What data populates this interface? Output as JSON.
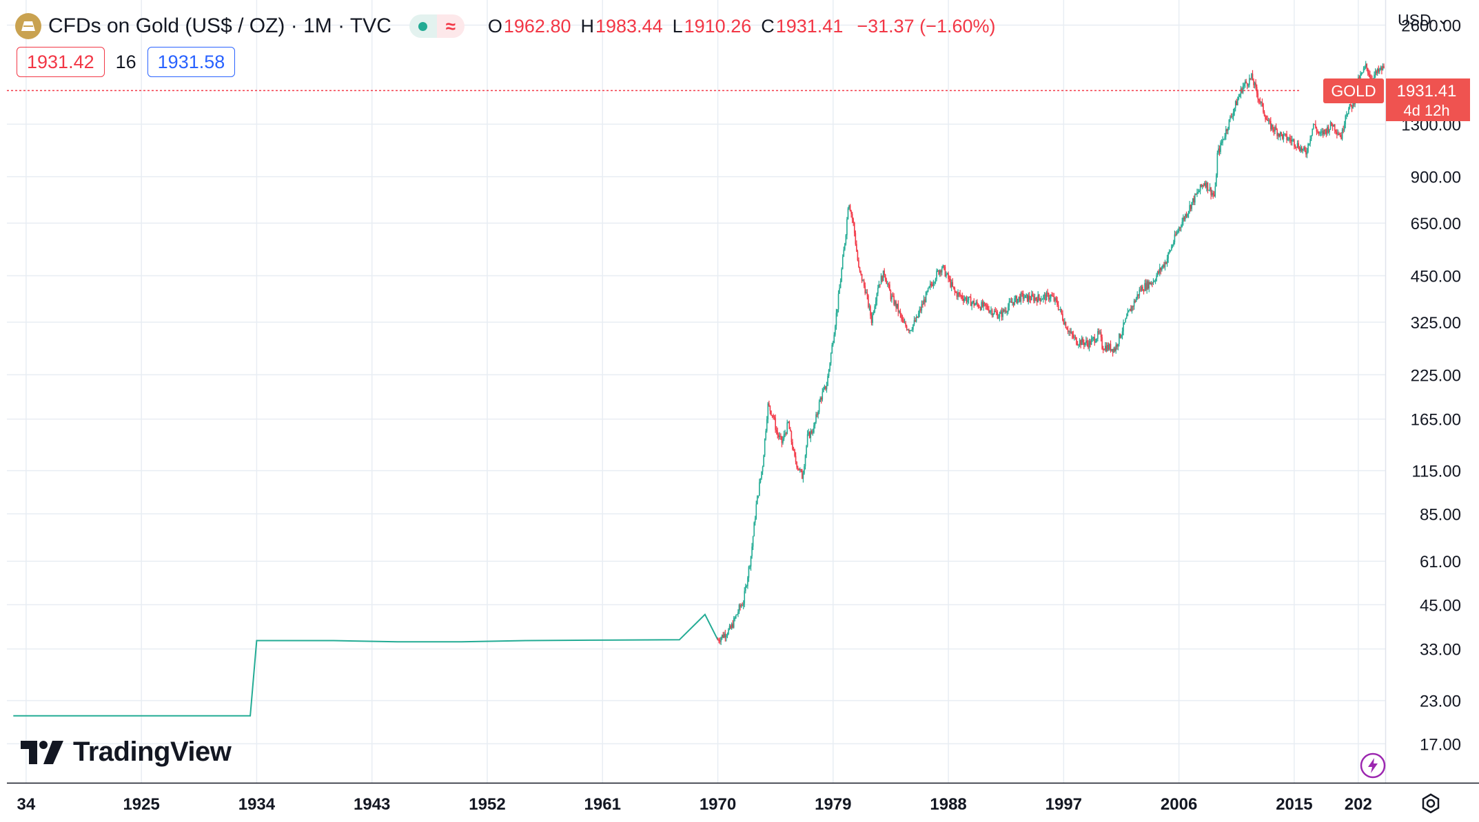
{
  "header": {
    "title": "CFDs on Gold (US$ / OZ) · 1M · TVC",
    "ohlc": [
      {
        "key": "O",
        "value": "1962.80"
      },
      {
        "key": "H",
        "value": "1983.44"
      },
      {
        "key": "L",
        "value": "1910.26"
      },
      {
        "key": "C",
        "value": "1931.41"
      }
    ],
    "change": "−31.37 (−1.60%)",
    "sell_price": "1931.42",
    "spread": "16",
    "buy_price": "1931.58",
    "currency": "USD"
  },
  "price_label": {
    "symbol": "GOLD",
    "price": "1931.41",
    "countdown": "4d 12h"
  },
  "brand": "TradingView",
  "colors": {
    "up": "#22ab94",
    "down": "#f23645",
    "grid": "#e8edf3",
    "buy": "#2962ff"
  },
  "icons": [
    "gold-bar-icon",
    "eye-dot-icon",
    "approx-icon",
    "chevron-down-icon",
    "tradingview-logo-icon",
    "lightning-icon",
    "gear-icon"
  ],
  "chart_data": {
    "type": "candlestick",
    "scale": "log",
    "x_ticks": [
      "34",
      "1925",
      "1934",
      "1943",
      "1952",
      "1961",
      "1970",
      "1979",
      "1988",
      "1997",
      "2006",
      "2015",
      "202"
    ],
    "y_ticks": [
      "2600.00",
      "1300.00",
      "900.00",
      "650.00",
      "450.00",
      "325.00",
      "225.00",
      "165.00",
      "115.00",
      "85.00",
      "61.00",
      "45.00",
      "33.00",
      "23.00",
      "17.00"
    ],
    "ylim": [
      13,
      3100
    ],
    "xlim": [
      1914.5,
      2022.0
    ],
    "last_close": 1931.41,
    "series": [
      {
        "x": [
          1915,
          1925,
          1933.5,
          1934,
          1940,
          1945,
          1950,
          1955,
          1960,
          1967,
          1969,
          1970
        ],
        "y": [
          20.67,
          20.67,
          20.67,
          35,
          35,
          34.7,
          34.7,
          35,
          35.1,
          35.2,
          42,
          35.2
        ]
      },
      {
        "x": [
          1970,
          1971,
          1971.7,
          1972,
          1972.6,
          1973,
          1973.5,
          1973.9,
          1974.3,
          1974.6,
          1975,
          1975.5,
          1976,
          1976.6,
          1977,
          1977.5,
          1978,
          1978.5,
          1979,
          1979.4,
          1979.8,
          1980.05,
          1980.2,
          1980.6,
          1981,
          1981.5,
          1982,
          1982.5,
          1983,
          1983.5,
          1984,
          1984.5,
          1985,
          1985.5,
          1986,
          1986.5,
          1987,
          1987.5,
          1988,
          1988.5,
          1989,
          1990,
          1991,
          1992,
          1993,
          1993.8,
          1994,
          1995,
          1996,
          1996.5,
          1997,
          1997.5,
          1998,
          1999,
          1999.8,
          2000,
          2001,
          2002,
          2003,
          2004,
          2005,
          2006,
          2007,
          2008,
          2008.8,
          2009,
          2010,
          2011,
          2011.7,
          2012,
          2013,
          2013.5,
          2014,
          2015,
          2015.9,
          2016.5,
          2017,
          2018,
          2018.7,
          2019,
          2019.6,
          2020,
          2020.6,
          2021,
          2022
        ],
        "y": [
          35.2,
          38,
          44,
          46,
          64,
          90,
          120,
          182,
          170,
          150,
          140,
          160,
          125,
          110,
          145,
          155,
          190,
          210,
          290,
          380,
          520,
          640,
          770,
          640,
          470,
          410,
          330,
          420,
          460,
          390,
          360,
          320,
          310,
          330,
          370,
          410,
          450,
          480,
          440,
          400,
          390,
          370,
          360,
          340,
          375,
          390,
          385,
          385,
          390,
          370,
          330,
          300,
          285,
          280,
          300,
          275,
          270,
          340,
          410,
          435,
          500,
          630,
          750,
          870,
          780,
          1050,
          1350,
          1700,
          1800,
          1650,
          1300,
          1250,
          1200,
          1150,
          1060,
          1300,
          1200,
          1300,
          1190,
          1400,
          1500,
          1750,
          1950,
          1800,
          1931.41
        ]
      }
    ]
  }
}
